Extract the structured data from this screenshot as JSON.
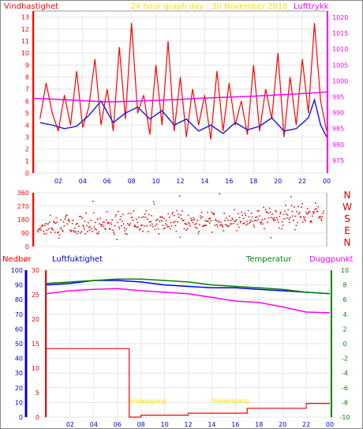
{
  "header": {
    "left_title": "Vindhastighet",
    "center_title": "24 hour graph day :  30 November 2018",
    "right_title": "Lufttrykk"
  },
  "colors": {
    "wind_speed": "#ff0000",
    "wind_avg": "#2222dd",
    "pressure": "#ff00ff",
    "left_axis": "#ff0000",
    "right_axis": "#ff00ff",
    "title": "#ffdd00",
    "rain": "#ff0000",
    "humidity": "#0000ff",
    "temperature": "#008800",
    "dewpoint": "#ff00ff"
  },
  "chart_data": [
    {
      "type": "line",
      "id": "wind_pressure",
      "x_ticks": [
        "02",
        "04",
        "06",
        "08",
        "10",
        "12",
        "14",
        "16",
        "18",
        "20",
        "22",
        "00"
      ],
      "x_range": [
        0,
        24
      ],
      "left_axis": {
        "ticks": [
          0,
          1,
          2,
          3,
          4,
          5,
          6,
          7,
          8,
          9,
          10,
          11,
          12,
          13
        ],
        "range": [
          0,
          13.5
        ]
      },
      "right_axis": {
        "ticks": [
          975,
          980,
          985,
          990,
          995,
          1000,
          1005,
          1010,
          1015,
          1020
        ],
        "range": [
          971,
          1022
        ]
      },
      "series": [
        {
          "name": "Vindhastighet",
          "axis": "left",
          "x": [
            0.5,
            1,
            1.5,
            2,
            2.5,
            3,
            3.5,
            4,
            4.5,
            5,
            5.5,
            6,
            6.5,
            7,
            7.5,
            8,
            8.5,
            9,
            9.5,
            10,
            10.5,
            11,
            11.5,
            12,
            12.5,
            13,
            13.5,
            14,
            14.5,
            15,
            15.5,
            16,
            16.5,
            17,
            17.5,
            18,
            18.5,
            19,
            19.5,
            20,
            20.5,
            21,
            21.5,
            22,
            22.5,
            23,
            23.5,
            24
          ],
          "values": [
            4.5,
            7.5,
            5,
            3.5,
            6.5,
            4,
            8.5,
            3.8,
            5.5,
            9.5,
            4,
            7,
            3.5,
            10.5,
            4.5,
            12.5,
            5,
            6.5,
            3.2,
            9,
            4,
            11,
            3.5,
            8,
            3,
            7,
            4,
            6.5,
            2.8,
            8.5,
            3.5,
            7.5,
            4,
            6,
            3.2,
            9,
            3.5,
            7,
            4.5,
            10,
            3,
            8,
            4,
            9.5,
            5,
            12.5,
            6,
            3.5
          ]
        },
        {
          "name": "avg",
          "axis": "left",
          "x": [
            0.5,
            1.5,
            2.5,
            3.5,
            4.5,
            5.5,
            6.5,
            7.5,
            8.5,
            9.5,
            10.5,
            11.5,
            12.5,
            13.5,
            14.5,
            15.5,
            16.5,
            17.5,
            18.5,
            19.5,
            20.5,
            21.5,
            22.5,
            23,
            23.5,
            24
          ],
          "values": [
            4.2,
            4.0,
            3.7,
            3.9,
            4.8,
            6.0,
            4.2,
            5.0,
            5.5,
            4.5,
            5.2,
            4.0,
            4.5,
            3.5,
            4.0,
            3.3,
            4.2,
            3.6,
            3.9,
            4.6,
            3.5,
            3.7,
            4.6,
            6.1,
            4.0,
            3.0
          ]
        },
        {
          "name": "Lufttrykk",
          "axis": "right",
          "x": [
            0,
            2,
            4,
            6,
            8,
            10,
            12,
            14,
            16,
            18,
            20,
            22,
            24
          ],
          "values": [
            994.5,
            994.2,
            993.8,
            993.4,
            993.6,
            993.9,
            994.2,
            994.6,
            994.9,
            995.2,
            995.6,
            996.0,
            996.5
          ]
        }
      ]
    },
    {
      "type": "scatter",
      "id": "wind_direction",
      "x_range": [
        0,
        24
      ],
      "y_ticks": [
        0,
        90,
        180,
        270,
        360
      ],
      "y_range": [
        0,
        360
      ],
      "compass_labels": [
        "N",
        "W",
        "S",
        "E",
        "N"
      ],
      "trend": {
        "x": [
          0,
          3,
          6,
          9,
          12,
          15,
          18,
          21,
          24
        ],
        "values": [
          130,
          145,
          150,
          165,
          160,
          170,
          190,
          210,
          235
        ]
      }
    },
    {
      "type": "line",
      "id": "rain_humidity_temp",
      "labels": {
        "rain": "Nedbør",
        "humidity": "Luftfuktighet",
        "temperature": "Temperatur",
        "dewpoint": "Duggpunkt"
      },
      "annotations": [
        "Soloppgang",
        "Solnedgang"
      ],
      "x_range": [
        0,
        24
      ],
      "humidity_axis": {
        "ticks": [
          0,
          10,
          20,
          30,
          40,
          50,
          60,
          70,
          80,
          90,
          100
        ],
        "range": [
          0,
          100
        ]
      },
      "rain_axis": {
        "ticks": [
          0,
          5,
          10,
          15,
          20,
          25,
          30
        ],
        "range": [
          0,
          30
        ]
      },
      "temp_axis": {
        "ticks": [
          -10,
          -8,
          -6,
          -4,
          -2,
          0,
          2,
          4,
          6,
          8,
          10
        ],
        "range": [
          -10,
          10
        ]
      },
      "series": [
        {
          "name": "Nedbør",
          "axis": "rain",
          "x": [
            0,
            7,
            7,
            8,
            8,
            12,
            12,
            17,
            17,
            22,
            22,
            24
          ],
          "values": [
            14,
            14,
            0,
            0,
            0.4,
            0.4,
            0.8,
            0.8,
            1.8,
            1.8,
            2.8,
            2.8
          ]
        },
        {
          "name": "Luftfuktighet",
          "axis": "humidity",
          "x": [
            0,
            2,
            4,
            6,
            8,
            10,
            12,
            14,
            16,
            18,
            20,
            22,
            24
          ],
          "values": [
            90,
            91,
            93,
            93,
            92,
            90,
            89,
            88,
            88,
            87,
            86,
            85,
            84
          ]
        },
        {
          "name": "Temperatur",
          "axis": "temp",
          "x": [
            0,
            2,
            4,
            6,
            8,
            10,
            12,
            14,
            16,
            18,
            20,
            22,
            24
          ],
          "values": [
            8.2,
            8.4,
            8.6,
            8.8,
            8.8,
            8.6,
            8.4,
            8.0,
            7.8,
            7.6,
            7.4,
            7.0,
            6.8
          ]
        },
        {
          "name": "Duggpunkt",
          "axis": "temp",
          "x": [
            0,
            2,
            4,
            6,
            8,
            10,
            12,
            14,
            16,
            18,
            20,
            22,
            24
          ],
          "values": [
            6.8,
            7.2,
            7.4,
            7.5,
            7.2,
            7.0,
            6.8,
            6.3,
            5.8,
            5.6,
            5.0,
            4.3,
            4.2
          ]
        }
      ]
    }
  ]
}
